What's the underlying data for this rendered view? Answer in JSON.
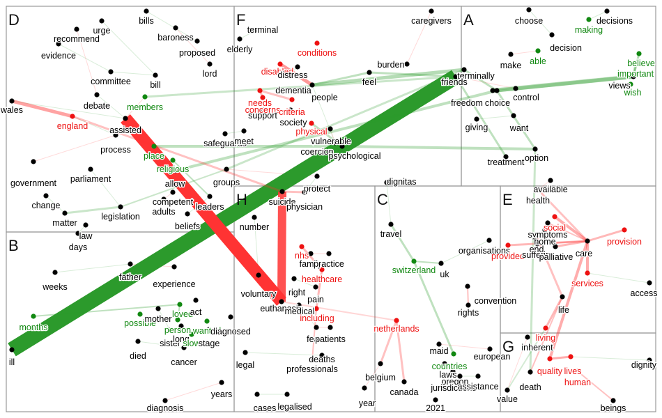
{
  "panels": [
    {
      "id": "D",
      "label": "D"
    },
    {
      "id": "F",
      "label": "F"
    },
    {
      "id": "A",
      "label": "A"
    },
    {
      "id": "B",
      "label": "B"
    },
    {
      "id": "H",
      "label": "H"
    },
    {
      "id": "C",
      "label": "C"
    },
    {
      "id": "E",
      "label": "E"
    },
    {
      "id": "G",
      "label": "G"
    }
  ],
  "colors": {
    "black": "#000000",
    "red": "#ee1111",
    "green": "#118811",
    "edge_red": "#ff3333",
    "edge_green": "#2c9a2c",
    "panel_border": "#999999"
  },
  "words": [
    {
      "t": "bills",
      "c": "black"
    },
    {
      "t": "urge",
      "c": "black"
    },
    {
      "t": "recommend",
      "c": "black"
    },
    {
      "t": "baroness",
      "c": "black"
    },
    {
      "t": "evidence",
      "c": "black"
    },
    {
      "t": "proposed",
      "c": "black"
    },
    {
      "t": "lord",
      "c": "black"
    },
    {
      "t": "committee",
      "c": "black"
    },
    {
      "t": "bill",
      "c": "black"
    },
    {
      "t": "debate",
      "c": "black"
    },
    {
      "t": "members",
      "c": "green"
    },
    {
      "t": "wales",
      "c": "black"
    },
    {
      "t": "england",
      "c": "red"
    },
    {
      "t": "assisted",
      "c": "black"
    },
    {
      "t": "process",
      "c": "black"
    },
    {
      "t": "place",
      "c": "green"
    },
    {
      "t": "religious",
      "c": "green"
    },
    {
      "t": "safeguards",
      "c": "black"
    },
    {
      "t": "government",
      "c": "black"
    },
    {
      "t": "parliament",
      "c": "black"
    },
    {
      "t": "allow",
      "c": "black"
    },
    {
      "t": "groups",
      "c": "black"
    },
    {
      "t": "change",
      "c": "black"
    },
    {
      "t": "competent",
      "c": "black"
    },
    {
      "t": "adults",
      "c": "black"
    },
    {
      "t": "leaders",
      "c": "black"
    },
    {
      "t": "legislation",
      "c": "black"
    },
    {
      "t": "matter",
      "c": "black"
    },
    {
      "t": "beliefs",
      "c": "black"
    },
    {
      "t": "law",
      "c": "black"
    },
    {
      "t": "days",
      "c": "black"
    },
    {
      "t": "terminal",
      "c": "black"
    },
    {
      "t": "elderly",
      "c": "black"
    },
    {
      "t": "conditions",
      "c": "red"
    },
    {
      "t": "caregivers",
      "c": "black"
    },
    {
      "t": "disabled",
      "c": "red"
    },
    {
      "t": "distress",
      "c": "black"
    },
    {
      "t": "burden",
      "c": "black"
    },
    {
      "t": "dementia",
      "c": "black"
    },
    {
      "t": "feel",
      "c": "black"
    },
    {
      "t": "people",
      "c": "black"
    },
    {
      "t": "needs",
      "c": "red"
    },
    {
      "t": "concerns",
      "c": "red"
    },
    {
      "t": "criteria",
      "c": "red"
    },
    {
      "t": "support",
      "c": "black"
    },
    {
      "t": "society",
      "c": "black"
    },
    {
      "t": "physical",
      "c": "red"
    },
    {
      "t": "vulnerable",
      "c": "black"
    },
    {
      "t": "meet",
      "c": "black"
    },
    {
      "t": "coercion",
      "c": "black"
    },
    {
      "t": "psychological",
      "c": "black"
    },
    {
      "t": "choose",
      "c": "black"
    },
    {
      "t": "decisions",
      "c": "black"
    },
    {
      "t": "making",
      "c": "green"
    },
    {
      "t": "decision",
      "c": "black"
    },
    {
      "t": "able",
      "c": "green"
    },
    {
      "t": "make",
      "c": "black"
    },
    {
      "t": "believe",
      "c": "green"
    },
    {
      "t": "important",
      "c": "green"
    },
    {
      "t": "views",
      "c": "black"
    },
    {
      "t": "wish",
      "c": "green"
    },
    {
      "t": "terminally",
      "c": "black"
    },
    {
      "t": "friends",
      "c": "black"
    },
    {
      "t": "freedom",
      "c": "black"
    },
    {
      "t": "choice",
      "c": "black"
    },
    {
      "t": "control",
      "c": "black"
    },
    {
      "t": "giving",
      "c": "black"
    },
    {
      "t": "want",
      "c": "black"
    },
    {
      "t": "option",
      "c": "black"
    },
    {
      "t": "treatment",
      "c": "black"
    },
    {
      "t": "weeks",
      "c": "black"
    },
    {
      "t": "father",
      "c": "black"
    },
    {
      "t": "experience",
      "c": "black"
    },
    {
      "t": "months",
      "c": "green"
    },
    {
      "t": "loved",
      "c": "green"
    },
    {
      "t": "possible",
      "c": "green"
    },
    {
      "t": "act",
      "c": "black"
    },
    {
      "t": "mother",
      "c": "black"
    },
    {
      "t": "person",
      "c": "green"
    },
    {
      "t": "wanted",
      "c": "green"
    },
    {
      "t": "diagnosed",
      "c": "black"
    },
    {
      "t": "sister",
      "c": "black"
    },
    {
      "t": "long",
      "c": "black"
    },
    {
      "t": "slow",
      "c": "green"
    },
    {
      "t": "stage",
      "c": "black"
    },
    {
      "t": "died",
      "c": "black"
    },
    {
      "t": "cancer",
      "c": "black"
    },
    {
      "t": "ill",
      "c": "black"
    },
    {
      "t": "years",
      "c": "black"
    },
    {
      "t": "diagnosis",
      "c": "black"
    },
    {
      "t": "protect",
      "c": "black"
    },
    {
      "t": "suicide",
      "c": "black"
    },
    {
      "t": "physician",
      "c": "black"
    },
    {
      "t": "number",
      "c": "black"
    },
    {
      "t": "nhs",
      "c": "red"
    },
    {
      "t": "family",
      "c": "black"
    },
    {
      "t": "practice",
      "c": "black"
    },
    {
      "t": "healthcare",
      "c": "red"
    },
    {
      "t": "voluntary",
      "c": "black"
    },
    {
      "t": "right",
      "c": "black"
    },
    {
      "t": "pain",
      "c": "black"
    },
    {
      "t": "euthanasia",
      "c": "black"
    },
    {
      "t": "medical",
      "c": "black"
    },
    {
      "t": "including",
      "c": "red"
    },
    {
      "t": "fears",
      "c": "black"
    },
    {
      "t": "patients",
      "c": "black"
    },
    {
      "t": "legal",
      "c": "black"
    },
    {
      "t": "deaths",
      "c": "black"
    },
    {
      "t": "professionals",
      "c": "black"
    },
    {
      "t": "cases",
      "c": "black"
    },
    {
      "t": "legalised",
      "c": "black"
    },
    {
      "t": "year",
      "c": "black"
    },
    {
      "t": "dignitas",
      "c": "black"
    },
    {
      "t": "travel",
      "c": "black"
    },
    {
      "t": "organisations",
      "c": "black"
    },
    {
      "t": "switzerland",
      "c": "green"
    },
    {
      "t": "uk",
      "c": "black"
    },
    {
      "t": "convention",
      "c": "black"
    },
    {
      "t": "rights",
      "c": "black"
    },
    {
      "t": "netherlands",
      "c": "red"
    },
    {
      "t": "maid",
      "c": "black"
    },
    {
      "t": "european",
      "c": "black"
    },
    {
      "t": "countries",
      "c": "green"
    },
    {
      "t": "belgium",
      "c": "black"
    },
    {
      "t": "laws",
      "c": "black"
    },
    {
      "t": "oregon",
      "c": "black"
    },
    {
      "t": "jurisdictions",
      "c": "black"
    },
    {
      "t": "assistance",
      "c": "black"
    },
    {
      "t": "canada",
      "c": "black"
    },
    {
      "t": "2021",
      "c": "black"
    },
    {
      "t": "available",
      "c": "black"
    },
    {
      "t": "health",
      "c": "black"
    },
    {
      "t": "social",
      "c": "red"
    },
    {
      "t": "symptoms",
      "c": "black"
    },
    {
      "t": "provision",
      "c": "red"
    },
    {
      "t": "home",
      "c": "black"
    },
    {
      "t": "care",
      "c": "black"
    },
    {
      "t": "provided",
      "c": "red"
    },
    {
      "t": "end",
      "c": "black"
    },
    {
      "t": "suffering",
      "c": "black"
    },
    {
      "t": "palliative",
      "c": "black"
    },
    {
      "t": "services",
      "c": "red"
    },
    {
      "t": "access",
      "c": "black"
    },
    {
      "t": "life",
      "c": "black"
    },
    {
      "t": "living",
      "c": "red"
    },
    {
      "t": "inherent",
      "c": "black"
    },
    {
      "t": "quality",
      "c": "red"
    },
    {
      "t": "lives",
      "c": "red"
    },
    {
      "t": "human",
      "c": "red"
    },
    {
      "t": "death",
      "c": "black"
    },
    {
      "t": "dignity",
      "c": "black"
    },
    {
      "t": "value",
      "c": "black"
    },
    {
      "t": "beings",
      "c": "black"
    }
  ]
}
